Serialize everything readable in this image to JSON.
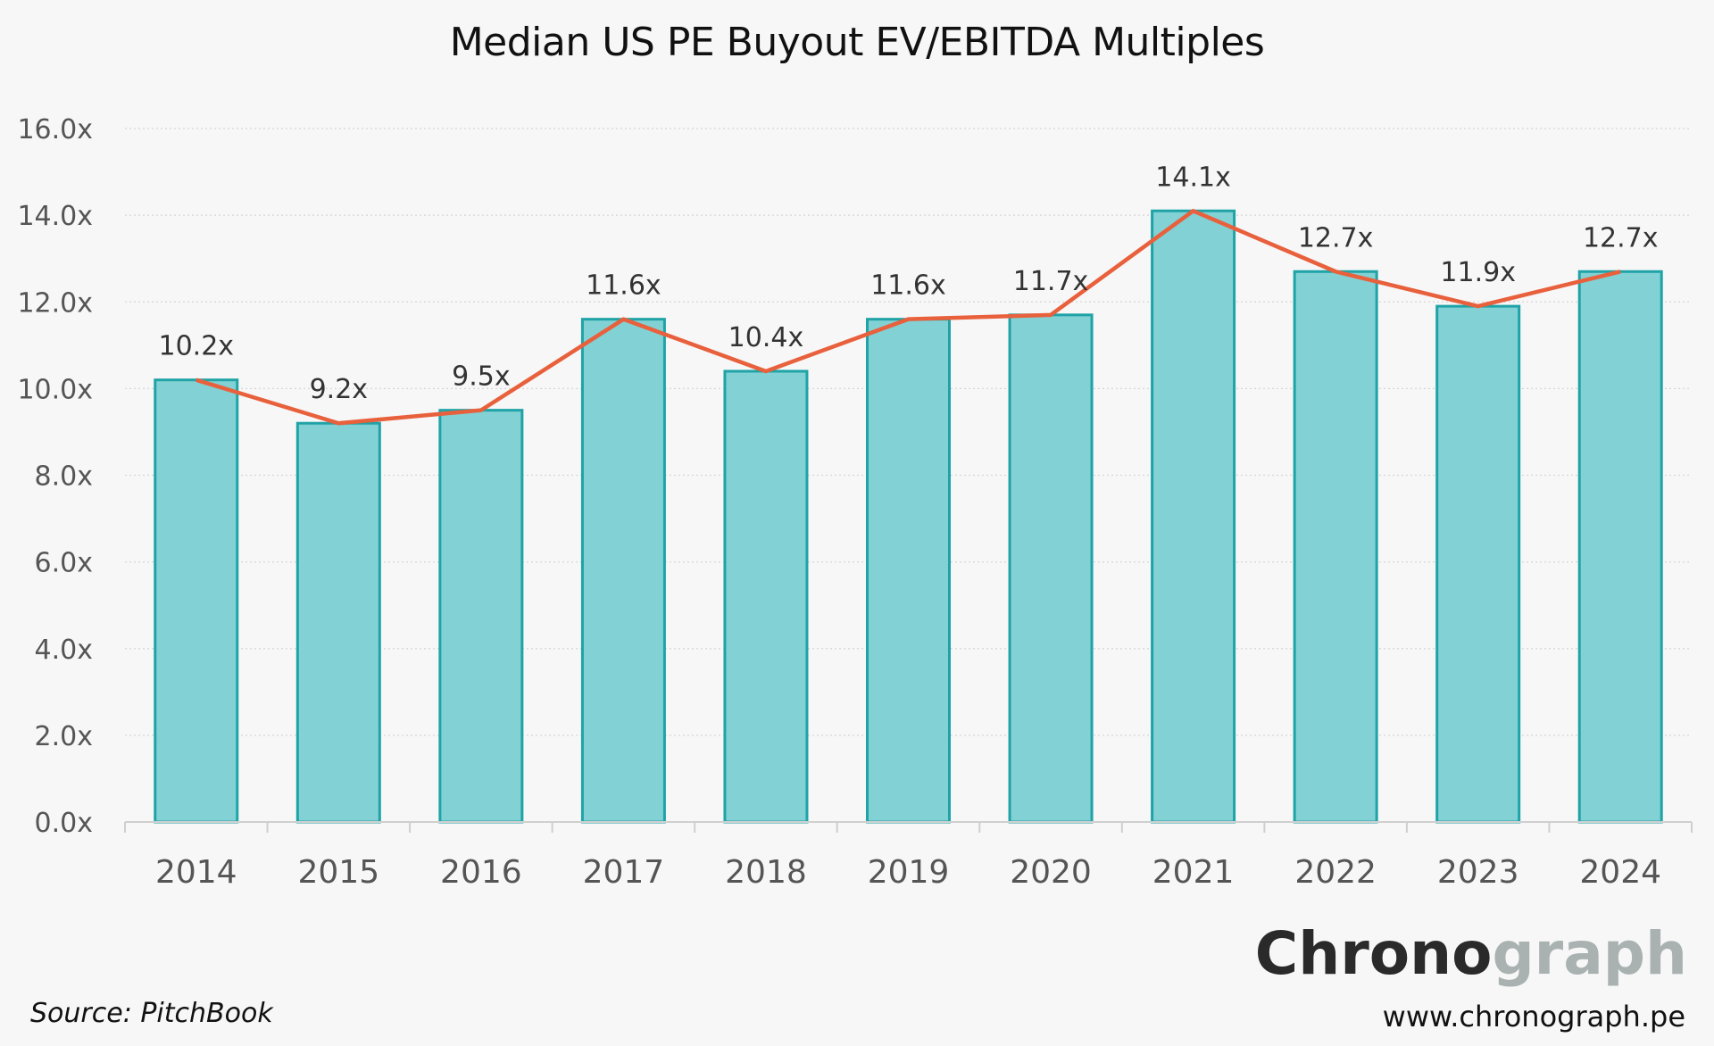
{
  "chart_data": {
    "type": "bar",
    "title": "Median US PE Buyout EV/EBITDA Multiples",
    "xlabel": "",
    "ylabel": "",
    "categories": [
      "2014",
      "2015",
      "2016",
      "2017",
      "2018",
      "2019",
      "2020",
      "2021",
      "2022",
      "2023",
      "2024"
    ],
    "values": [
      10.2,
      9.2,
      9.5,
      11.6,
      10.4,
      11.6,
      11.7,
      14.1,
      12.7,
      11.9,
      12.7
    ],
    "data_labels": [
      "10.2x",
      "9.2x",
      "9.5x",
      "11.6x",
      "10.4x",
      "11.6x",
      "11.7x",
      "14.1x",
      "12.7x",
      "11.9x",
      "12.7x"
    ],
    "overlay_line": true,
    "ylim": [
      0,
      16
    ],
    "y_ticks": [
      0,
      2,
      4,
      6,
      8,
      10,
      12,
      14,
      16
    ],
    "y_tick_labels": [
      "0.0x",
      "2.0x",
      "4.0x",
      "6.0x",
      "8.0x",
      "10.0x",
      "12.0x",
      "14.0x",
      "16.0x"
    ],
    "grid": true,
    "legend": "none",
    "colors": {
      "bar_fill": "#82d1d4",
      "bar_stroke": "#1fa3a7",
      "line": "#e8603c",
      "grid": "#d6d6d6",
      "axis": "#cfcfcf"
    }
  },
  "footer": {
    "source": "Source: PitchBook",
    "brand_part1": "Chrono",
    "brand_part2": "graph",
    "website": "www.chronograph.pe"
  }
}
